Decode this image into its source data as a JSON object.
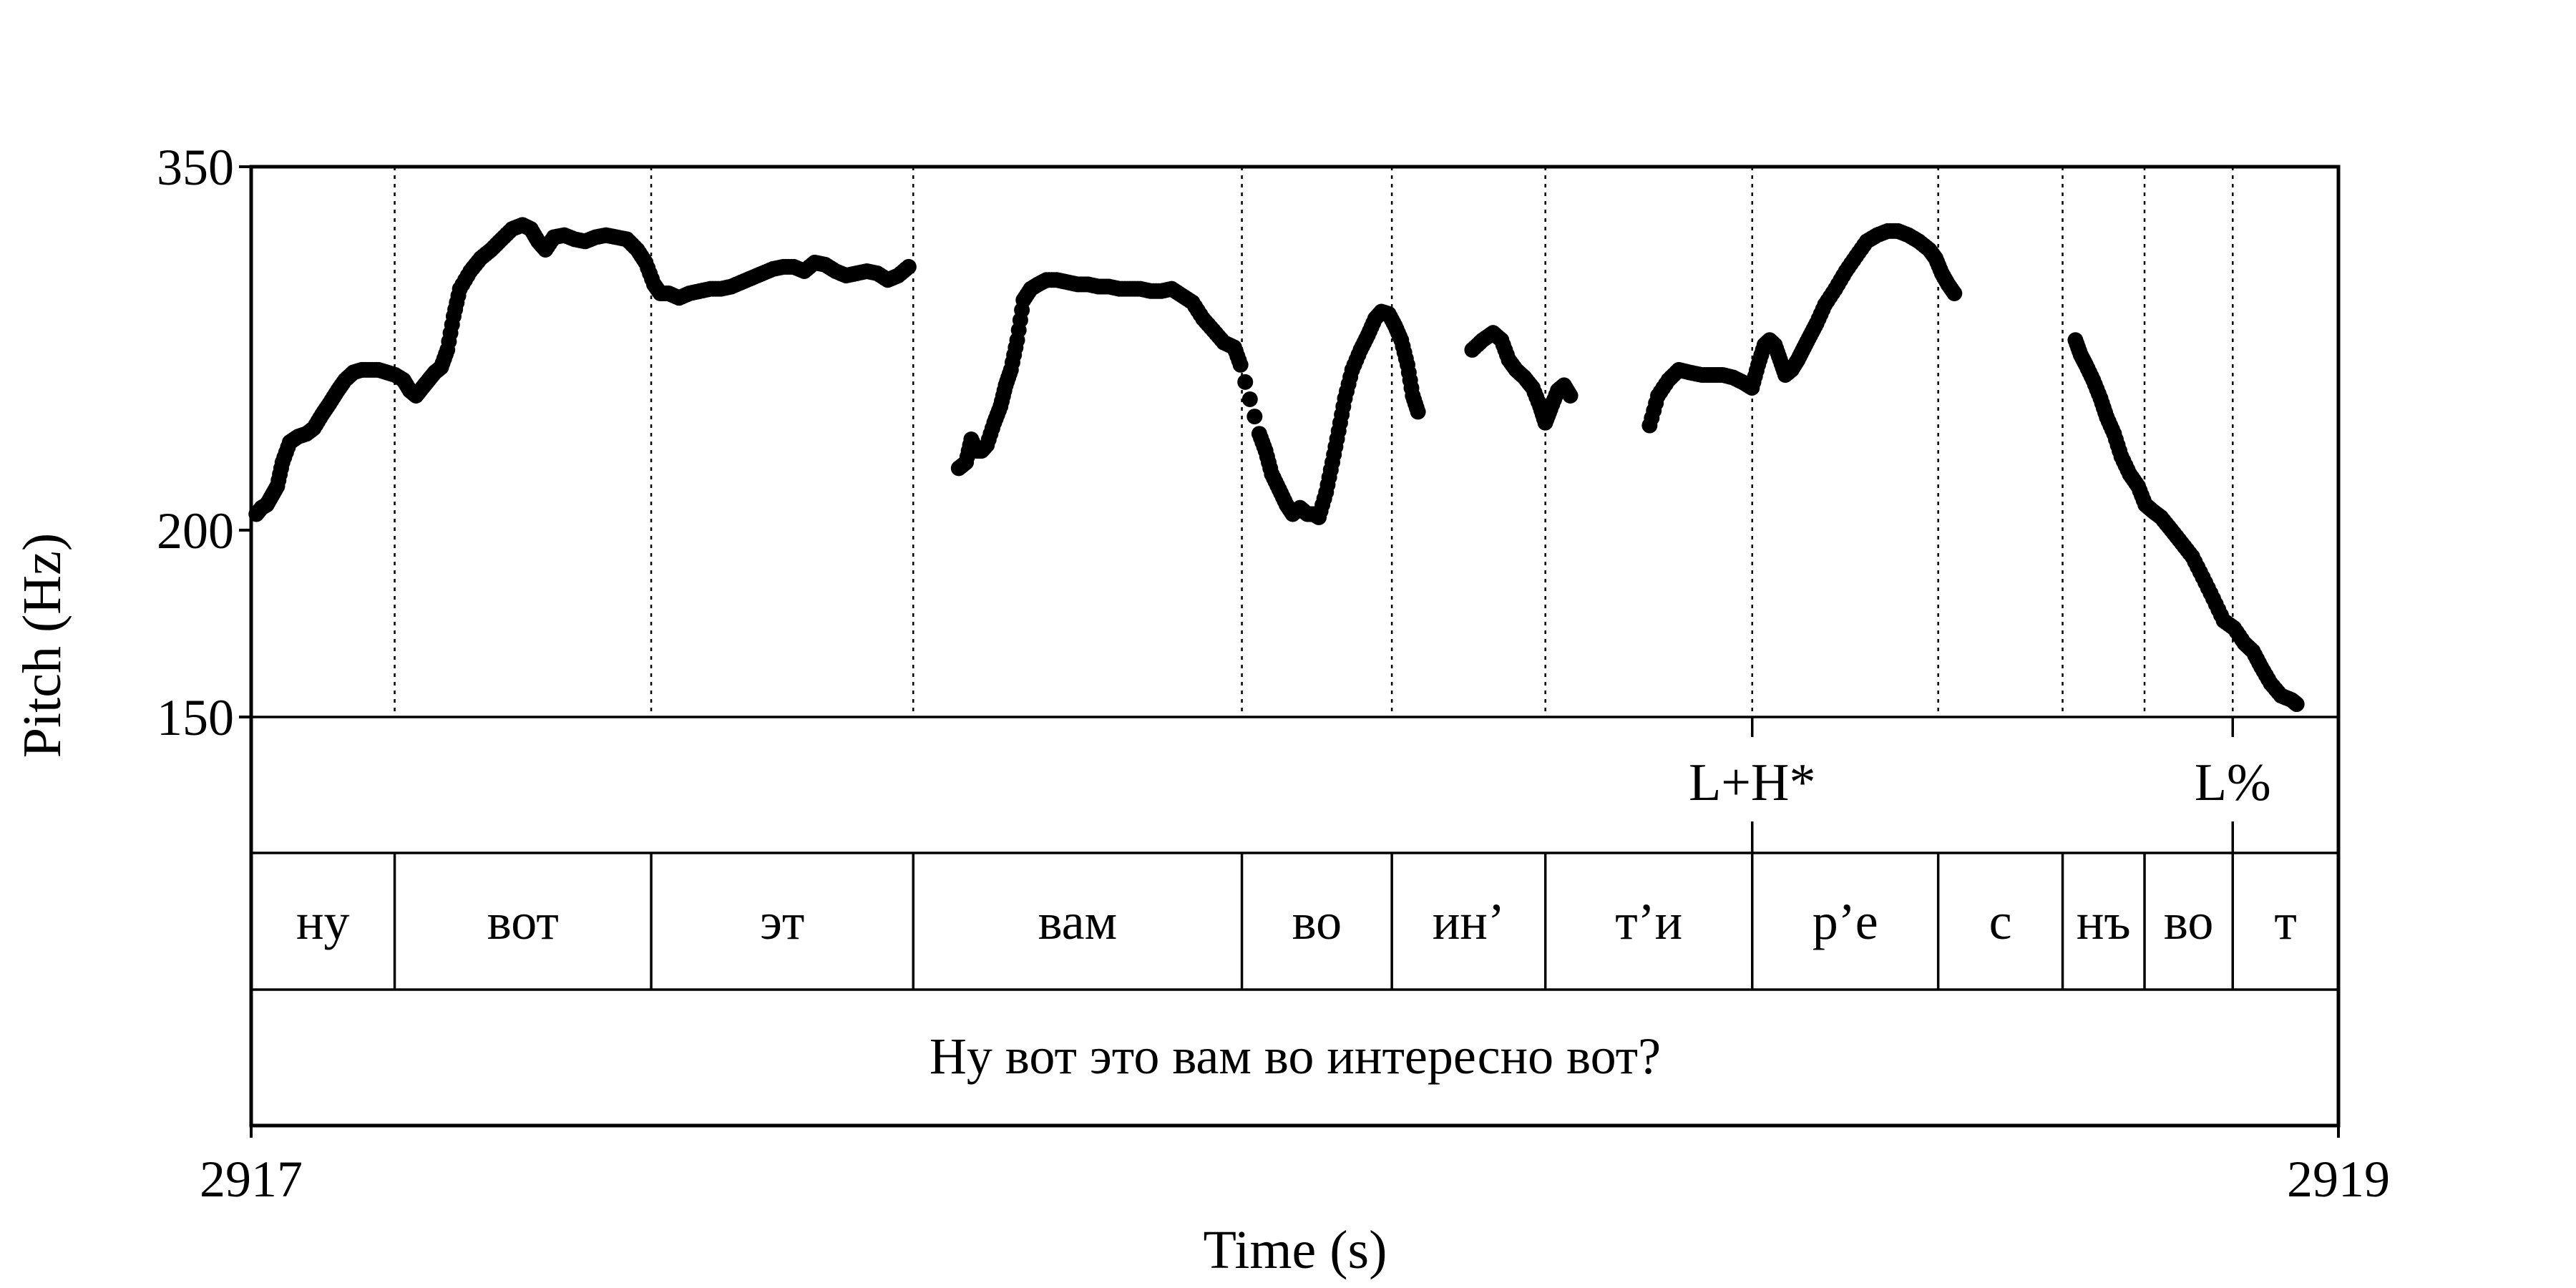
{
  "chart_data": {
    "type": "scatter",
    "xlabel": "Time (s)",
    "ylabel": "Pitch (Hz)",
    "xlim": [
      2917,
      2919
    ],
    "ylim": [
      150,
      350
    ],
    "y_scale": "log",
    "x_ticks": [
      "2917",
      "2919"
    ],
    "y_ticks": [
      "350",
      "200",
      "150"
    ],
    "grid": false,
    "boundaries": [
      2917.1375,
      2917.3833,
      2917.6344,
      2917.9493,
      2918.093,
      2918.2401,
      2918.4383,
      2918.6165,
      2918.7357,
      2918.8142,
      2918.8987
    ],
    "tones": [
      {
        "label": "L+H*",
        "time": 2918.4383
      },
      {
        "label": "L%",
        "time": 2918.8987
      }
    ],
    "segments": [
      "ну",
      "вот",
      "эт",
      "вам",
      "во",
      "ин’",
      "т’и",
      "р’е",
      "с",
      "нъ",
      "во",
      "т"
    ],
    "sentence": "Ну вот это вам во интересно вот?",
    "series": [
      {
        "values": [
          [
            2917.005,
            205
          ],
          [
            2917.01,
            207
          ],
          [
            2917.015,
            208
          ],
          [
            2917.02,
            211
          ],
          [
            2917.025,
            214
          ],
          [
            2917.03,
            222
          ],
          [
            2917.037,
            229
          ],
          [
            2917.045,
            231
          ],
          [
            2917.053,
            232
          ],
          [
            2917.06,
            234
          ],
          [
            2917.068,
            239
          ],
          [
            2917.075,
            243
          ],
          [
            2917.083,
            248
          ],
          [
            2917.09,
            252
          ],
          [
            2917.098,
            255
          ],
          [
            2917.106,
            256
          ],
          [
            2917.114,
            256
          ],
          [
            2917.122,
            256
          ],
          [
            2917.13,
            255
          ],
          [
            2917.138,
            254
          ],
          [
            2917.146,
            252
          ],
          [
            2917.152,
            248
          ],
          [
            2917.158,
            246
          ],
          [
            2917.164,
            249
          ],
          [
            2917.17,
            252
          ],
          [
            2917.176,
            255
          ],
          [
            2917.182,
            257
          ],
          [
            2917.188,
            264
          ],
          [
            2917.194,
            278
          ],
          [
            2917.2,
            290
          ],
          [
            2917.21,
            298
          ],
          [
            2917.22,
            304
          ],
          [
            2917.23,
            308
          ],
          [
            2917.24,
            313
          ],
          [
            2917.25,
            318
          ],
          [
            2917.26,
            320
          ],
          [
            2917.268,
            318
          ],
          [
            2917.275,
            312
          ],
          [
            2917.282,
            308
          ],
          [
            2917.29,
            314
          ],
          [
            2917.3,
            315
          ],
          [
            2917.31,
            313
          ],
          [
            2917.32,
            312
          ],
          [
            2917.33,
            314
          ],
          [
            2917.34,
            315
          ],
          [
            2917.35,
            314
          ],
          [
            2917.36,
            313
          ],
          [
            2917.37,
            308
          ],
          [
            2917.378,
            302
          ],
          [
            2917.386,
            292
          ],
          [
            2917.392,
            288
          ],
          [
            2917.4,
            288
          ],
          [
            2917.41,
            286
          ],
          [
            2917.42,
            288
          ],
          [
            2917.43,
            289
          ],
          [
            2917.44,
            290
          ],
          [
            2917.45,
            290
          ],
          [
            2917.46,
            291
          ],
          [
            2917.47,
            293
          ],
          [
            2917.48,
            295
          ],
          [
            2917.49,
            297
          ],
          [
            2917.5,
            299
          ],
          [
            2917.51,
            300
          ],
          [
            2917.52,
            300
          ],
          [
            2917.53,
            298
          ],
          [
            2917.54,
            302
          ],
          [
            2917.55,
            301
          ],
          [
            2917.56,
            298
          ],
          [
            2917.57,
            296
          ],
          [
            2917.58,
            297
          ],
          [
            2917.59,
            298
          ],
          [
            2917.6,
            297
          ],
          [
            2917.61,
            294
          ],
          [
            2917.62,
            296
          ],
          [
            2917.63,
            300
          ],
          [
            2917.678,
            220
          ],
          [
            2917.685,
            222
          ],
          [
            2917.69,
            230
          ],
          [
            2917.695,
            226
          ],
          [
            2917.7,
            226
          ],
          [
            2917.705,
            228
          ],
          [
            2917.712,
            236
          ],
          [
            2917.718,
            242
          ],
          [
            2917.723,
            250
          ],
          [
            2917.728,
            256
          ],
          [
            2917.734,
            268
          ],
          [
            2917.74,
            285
          ],
          [
            2917.747,
            290
          ],
          [
            2917.754,
            292
          ],
          [
            2917.762,
            294
          ],
          [
            2917.772,
            294
          ],
          [
            2917.782,
            293
          ],
          [
            2917.792,
            292
          ],
          [
            2917.802,
            292
          ],
          [
            2917.812,
            291
          ],
          [
            2917.822,
            291
          ],
          [
            2917.832,
            290
          ],
          [
            2917.842,
            290
          ],
          [
            2917.852,
            290
          ],
          [
            2917.862,
            289
          ],
          [
            2917.872,
            289
          ],
          [
            2917.882,
            290
          ],
          [
            2917.892,
            287
          ],
          [
            2917.902,
            284
          ],
          [
            2917.912,
            277
          ],
          [
            2917.922,
            272
          ],
          [
            2917.932,
            267
          ],
          [
            2917.942,
            265
          ],
          [
            2917.948,
            258
          ],
          [
            2917.966,
            232
          ],
          [
            2917.972,
            226
          ],
          [
            2917.978,
            218
          ],
          [
            2917.985,
            213
          ],
          [
            2917.992,
            208
          ],
          [
            2917.998,
            205
          ],
          [
            2918.005,
            207
          ],
          [
            2918.012,
            205
          ],
          [
            2918.018,
            205
          ],
          [
            2918.023,
            204
          ],
          [
            2918.03,
            212
          ],
          [
            2918.036,
            222
          ],
          [
            2918.042,
            233
          ],
          [
            2918.048,
            245
          ],
          [
            2918.055,
            256
          ],
          [
            2918.063,
            264
          ],
          [
            2918.07,
            270
          ],
          [
            2918.077,
            277
          ],
          [
            2918.083,
            280
          ],
          [
            2918.09,
            279
          ],
          [
            2918.096,
            274
          ],
          [
            2918.102,
            268
          ],
          [
            2918.108,
            258
          ],
          [
            2918.113,
            246
          ],
          [
            2918.118,
            240
          ],
          [
            2918.17,
            264
          ],
          [
            2918.18,
            268
          ],
          [
            2918.19,
            271
          ],
          [
            2918.198,
            268
          ],
          [
            2918.205,
            260
          ],
          [
            2918.212,
            256
          ],
          [
            2918.22,
            253
          ],
          [
            2918.228,
            249
          ],
          [
            2918.235,
            242
          ],
          [
            2918.24,
            236
          ],
          [
            2918.245,
            241
          ],
          [
            2918.252,
            248
          ],
          [
            2918.258,
            250
          ],
          [
            2918.264,
            246
          ],
          [
            2918.34,
            235
          ],
          [
            2918.348,
            246
          ],
          [
            2918.358,
            252
          ],
          [
            2918.368,
            256
          ],
          [
            2918.378,
            255
          ],
          [
            2918.39,
            254
          ],
          [
            2918.4,
            254
          ],
          [
            2918.41,
            254
          ],
          [
            2918.42,
            253
          ],
          [
            2918.43,
            251
          ],
          [
            2918.438,
            249
          ],
          [
            2918.444,
            258
          ],
          [
            2918.45,
            266
          ],
          [
            2918.455,
            268
          ],
          [
            2918.46,
            266
          ],
          [
            2918.465,
            260
          ],
          [
            2918.47,
            254
          ],
          [
            2918.476,
            256
          ],
          [
            2918.482,
            260
          ],
          [
            2918.488,
            265
          ],
          [
            2918.494,
            270
          ],
          [
            2918.5,
            275
          ],
          [
            2918.508,
            283
          ],
          [
            2918.518,
            290
          ],
          [
            2918.528,
            298
          ],
          [
            2918.538,
            305
          ],
          [
            2918.548,
            312
          ],
          [
            2918.558,
            315
          ],
          [
            2918.568,
            317
          ],
          [
            2918.578,
            317
          ],
          [
            2918.588,
            315
          ],
          [
            2918.598,
            312
          ],
          [
            2918.608,
            308
          ],
          [
            2918.614,
            304
          ],
          [
            2918.62,
            297
          ],
          [
            2918.626,
            292
          ],
          [
            2918.632,
            288
          ],
          [
            2918.748,
            268
          ],
          [
            2918.753,
            262
          ],
          [
            2918.758,
            258
          ],
          [
            2918.765,
            252
          ],
          [
            2918.772,
            245
          ],
          [
            2918.778,
            238
          ],
          [
            2918.785,
            232
          ],
          [
            2918.792,
            224
          ],
          [
            2918.8,
            218
          ],
          [
            2918.808,
            214
          ],
          [
            2918.815,
            208
          ],
          [
            2918.822,
            206
          ],
          [
            2918.83,
            204
          ],
          [
            2918.84,
            200
          ],
          [
            2918.85,
            196
          ],
          [
            2918.86,
            192
          ],
          [
            2918.87,
            186
          ],
          [
            2918.88,
            180
          ],
          [
            2918.89,
            174
          ],
          [
            2918.9,
            172
          ],
          [
            2918.91,
            168
          ],
          [
            2918.918,
            166
          ],
          [
            2918.926,
            162
          ],
          [
            2918.935,
            158
          ],
          [
            2918.945,
            155
          ],
          [
            2918.955,
            154
          ],
          [
            2918.96,
            153
          ]
        ]
      }
    ]
  }
}
